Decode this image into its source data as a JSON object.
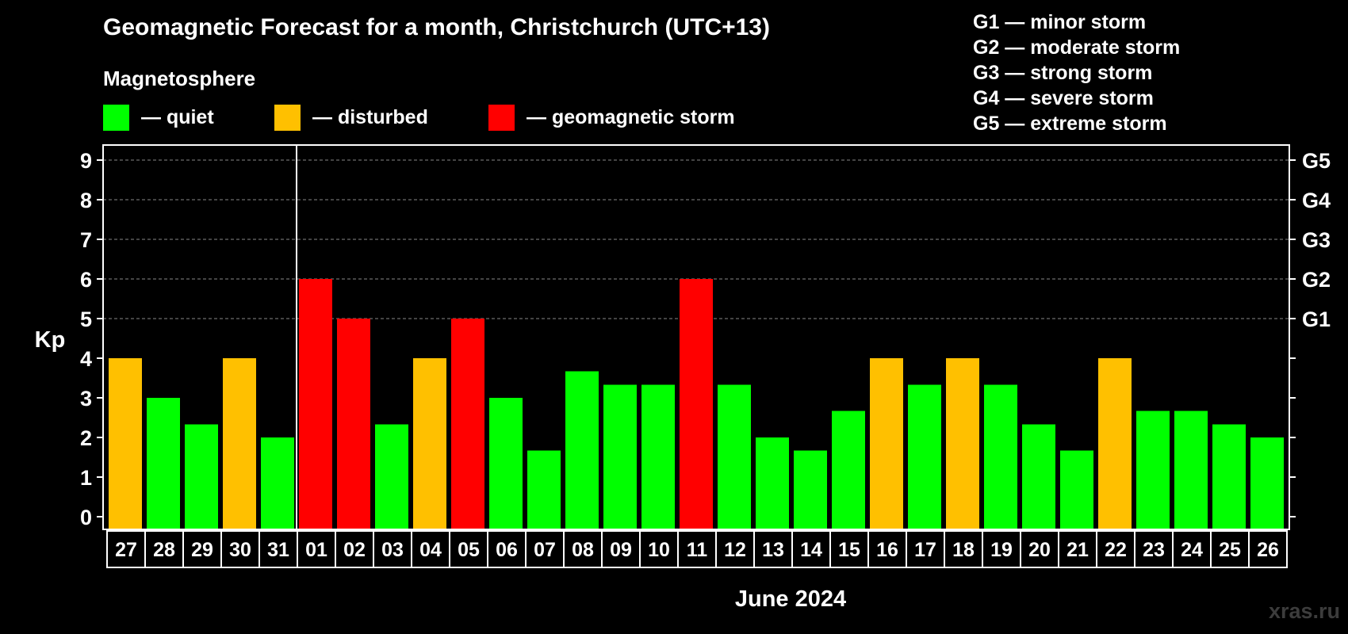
{
  "chart_data": {
    "type": "bar",
    "title": "Geomagnetic Forecast for a month, Christchurch (UTC+13)",
    "subtitle": "Magnetosphere",
    "ylabel": "Kp",
    "xlabel": "June 2024",
    "ylim": [
      0,
      9
    ],
    "yticks": [
      "0",
      "1",
      "2",
      "3",
      "4",
      "5",
      "6",
      "7",
      "8",
      "9"
    ],
    "right_axis_labels": [
      {
        "kp": 5,
        "label": "G1"
      },
      {
        "kp": 6,
        "label": "G2"
      },
      {
        "kp": 7,
        "label": "G3"
      },
      {
        "kp": 8,
        "label": "G4"
      },
      {
        "kp": 9,
        "label": "G5"
      }
    ],
    "month_boundary_after_index": 4,
    "categories": [
      "27",
      "28",
      "29",
      "30",
      "31",
      "01",
      "02",
      "03",
      "04",
      "05",
      "06",
      "07",
      "08",
      "09",
      "10",
      "11",
      "12",
      "13",
      "14",
      "15",
      "16",
      "17",
      "18",
      "19",
      "20",
      "21",
      "22",
      "23",
      "24",
      "25",
      "26"
    ],
    "values": [
      4,
      3,
      2.33,
      4,
      2,
      6,
      5,
      2.33,
      4,
      5,
      3,
      1.67,
      3.67,
      3.33,
      3.33,
      6,
      3.33,
      2,
      1.67,
      2.67,
      4,
      3.33,
      4,
      3.33,
      2.33,
      1.67,
      4,
      2.67,
      2.67,
      2.33,
      2
    ],
    "status": [
      "disturbed",
      "quiet",
      "quiet",
      "disturbed",
      "quiet",
      "storm",
      "storm",
      "quiet",
      "disturbed",
      "storm",
      "quiet",
      "quiet",
      "quiet",
      "quiet",
      "quiet",
      "storm",
      "quiet",
      "quiet",
      "quiet",
      "quiet",
      "disturbed",
      "quiet",
      "disturbed",
      "quiet",
      "quiet",
      "quiet",
      "disturbed",
      "quiet",
      "quiet",
      "quiet",
      "quiet"
    ],
    "grid": true
  },
  "legend": {
    "quiet": {
      "label": "— quiet",
      "color": "#00ff00"
    },
    "disturbed": {
      "label": "— disturbed",
      "color": "#ffc000"
    },
    "storm": {
      "label": "— geomagnetic storm",
      "color": "#ff0000"
    }
  },
  "g_scale": [
    "G1 — minor storm",
    "G2 — moderate storm",
    "G3 — strong storm",
    "G4 — severe storm",
    "G5 — extreme storm"
  ],
  "watermark": "xras.ru"
}
